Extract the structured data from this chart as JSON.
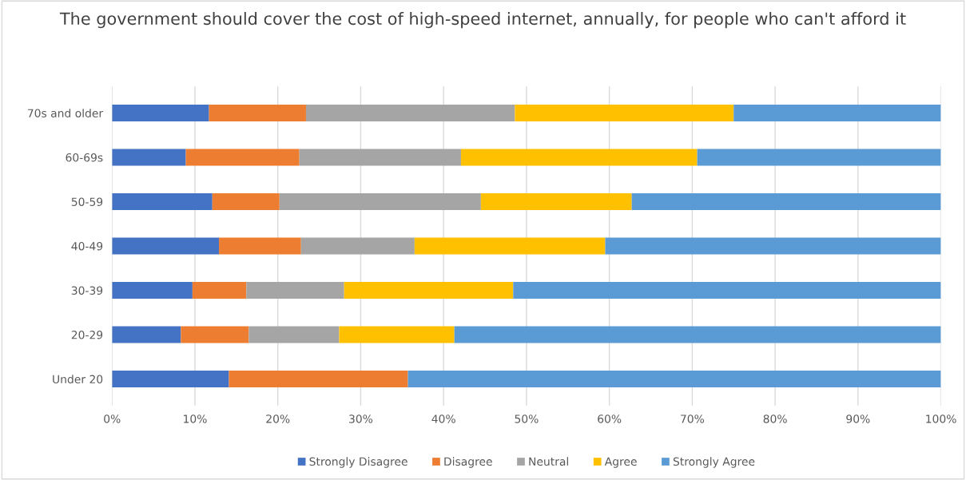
{
  "chart_data": {
    "type": "bar",
    "orientation": "horizontal",
    "stacked": true,
    "title": "The government should cover the cost of high-speed internet, annually, for people who can't afford it",
    "categories": [
      "70s and older",
      "60-69s",
      "50-59",
      "40-49",
      "30-39",
      "20-29",
      "Under 20"
    ],
    "series": [
      {
        "name": "Strongly Disagree",
        "color": "#4472c4",
        "values": [
          11.7,
          8.9,
          12.1,
          12.9,
          9.7,
          8.3,
          14.1
        ]
      },
      {
        "name": "Disagree",
        "color": "#ed7d31",
        "values": [
          11.7,
          13.7,
          8.1,
          9.9,
          6.5,
          8.2,
          21.6
        ]
      },
      {
        "name": "Neutral",
        "color": "#a5a5a5",
        "values": [
          25.2,
          19.5,
          24.3,
          13.7,
          11.8,
          10.9,
          0
        ]
      },
      {
        "name": "Agree",
        "color": "#ffc000",
        "values": [
          26.4,
          28.5,
          18.2,
          23.0,
          20.4,
          13.9,
          0
        ]
      },
      {
        "name": "Strongly Agree",
        "color": "#5b9bd5",
        "values": [
          25.0,
          29.4,
          37.3,
          40.5,
          51.6,
          58.7,
          64.3
        ]
      }
    ],
    "xlim": [
      0,
      100
    ],
    "xticks": [
      {
        "value": 0,
        "label": "0%"
      },
      {
        "value": 10,
        "label": "10%"
      },
      {
        "value": 20,
        "label": "20%"
      },
      {
        "value": 30,
        "label": "30%"
      },
      {
        "value": 40,
        "label": "40%"
      },
      {
        "value": 50,
        "label": "50%"
      },
      {
        "value": 60,
        "label": "60%"
      },
      {
        "value": 70,
        "label": "70%"
      },
      {
        "value": 80,
        "label": "80%"
      },
      {
        "value": 90,
        "label": "90%"
      },
      {
        "value": 100,
        "label": "100%"
      }
    ],
    "grid": "x",
    "legend": "bottom"
  }
}
